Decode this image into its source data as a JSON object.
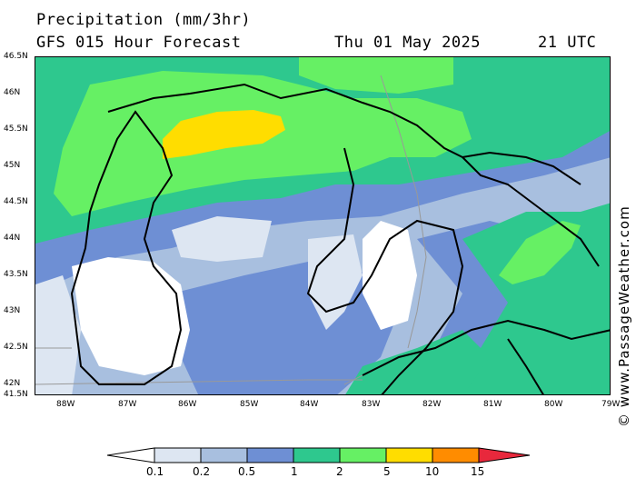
{
  "header": {
    "title": "Precipitation (mm/3hr)",
    "subtitle": "GFS 015 Hour Forecast",
    "date": "Thu 01 May 2025",
    "time": "21 UTC"
  },
  "credit": "© www.PassageWeather.com",
  "lat_labels": [
    "46.5N",
    "46N",
    "45.5N",
    "45N",
    "44.5N",
    "44N",
    "43.5N",
    "43N",
    "42.5N",
    "42N",
    "41.5N"
  ],
  "lon_labels": [
    "88W",
    "87W",
    "86W",
    "85W",
    "84W",
    "83W",
    "82W",
    "81W",
    "80W",
    "79W"
  ],
  "legend": {
    "labels": [
      "0.1",
      "0.2",
      "0.5",
      "1",
      "2",
      "5",
      "10",
      "15"
    ],
    "colors": {
      "min": "#ffffff",
      "b01": "#dde6f2",
      "b02": "#a8bfdf",
      "b05": "#6e8fd4",
      "b1": "#2ec88e",
      "b2": "#66f064",
      "b5": "#ffdd00",
      "b10": "#ff8c00",
      "b15": "#e8283c"
    }
  },
  "map": {
    "colors": {
      "none": "#ffffff",
      "light": "#dde6f2",
      "lightblue": "#a8bfdf",
      "blue": "#6e8fd4",
      "teal": "#2ec88e",
      "green": "#66f064",
      "yellow": "#ffdd00",
      "coast": "#000000",
      "border": "#999999"
    }
  }
}
